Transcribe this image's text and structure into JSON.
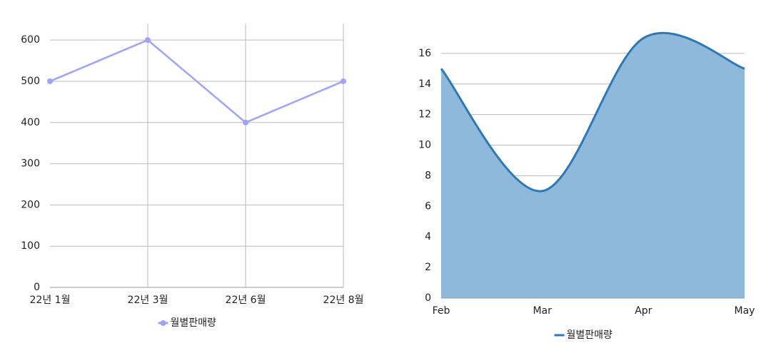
{
  "chart_data": [
    {
      "type": "line",
      "categories": [
        "22년 1월",
        "22년 3월",
        "22년 6월",
        "22년 8월"
      ],
      "series": [
        {
          "name": "월별판매량",
          "color": "#9fa3ff",
          "values": [
            500,
            600,
            400,
            500
          ]
        }
      ],
      "ylim": [
        0,
        640
      ],
      "yticks": [
        0,
        100,
        200,
        300,
        400,
        500,
        600
      ],
      "grid": [
        "x",
        "y"
      ],
      "markers": true,
      "legend": "bottom"
    },
    {
      "type": "area",
      "categories": [
        "Feb",
        "Mar",
        "Apr",
        "May"
      ],
      "series": [
        {
          "name": "월별판매량",
          "color": "#2b79b6",
          "fill": "#8fb9da",
          "values": [
            15,
            7,
            17,
            15
          ]
        }
      ],
      "ylim": [
        0,
        18
      ],
      "yticks": [
        0,
        2,
        4,
        6,
        8,
        10,
        12,
        14,
        16
      ],
      "grid": [
        "y"
      ],
      "smooth": true,
      "legend": "bottom"
    }
  ]
}
